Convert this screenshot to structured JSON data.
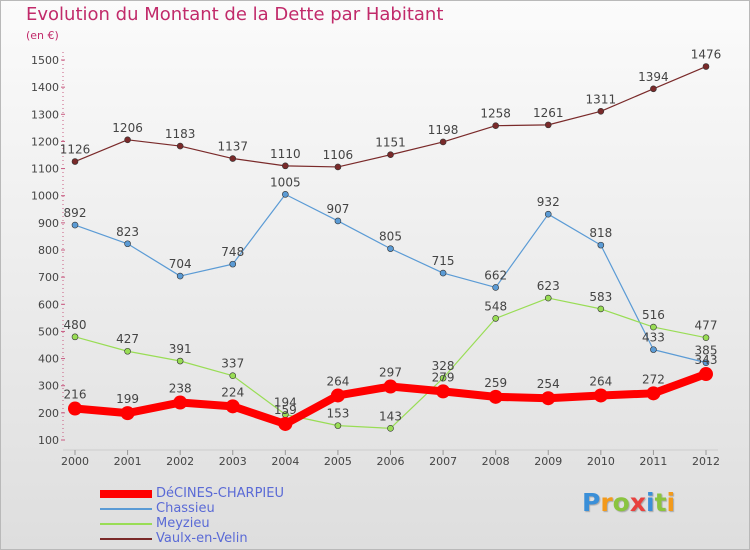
{
  "chart_data": {
    "type": "line",
    "title": "Evolution du Montant de la Dette par Habitant",
    "subtitle": "(en €)",
    "categories": [
      "2000",
      "2001",
      "2002",
      "2003",
      "2004",
      "2005",
      "2006",
      "2007",
      "2008",
      "2009",
      "2010",
      "2011",
      "2012"
    ],
    "ylim": [
      100,
      1500
    ],
    "yticks": [
      100,
      200,
      300,
      400,
      500,
      600,
      700,
      800,
      900,
      1000,
      1100,
      1200,
      1300,
      1400,
      1500
    ],
    "grid": false,
    "legend_position": "bottom-left",
    "series": [
      {
        "name": "DéCINES-CHARPIEU",
        "color": "#ff0000",
        "values": [
          216,
          199,
          238,
          224,
          159,
          264,
          297,
          279,
          259,
          254,
          264,
          272,
          343
        ]
      },
      {
        "name": "Chassieu",
        "color": "#5b9bd5",
        "values": [
          892,
          823,
          704,
          748,
          1005,
          907,
          805,
          715,
          662,
          932,
          818,
          433,
          385
        ]
      },
      {
        "name": "Meyzieu",
        "color": "#99dd55",
        "values": [
          480,
          427,
          391,
          337,
          194,
          153,
          143,
          328,
          548,
          623,
          583,
          516,
          477
        ]
      },
      {
        "name": "Vaulx-en-Velin",
        "color": "#7a2a2a",
        "values": [
          1126,
          1206,
          1183,
          1137,
          1110,
          1106,
          1151,
          1198,
          1258,
          1261,
          1311,
          1394,
          1476
        ]
      }
    ]
  },
  "logo": {
    "letters": [
      "P",
      "r",
      "o",
      "x",
      "i",
      "t",
      "i"
    ],
    "colors": [
      "#3a8fd8",
      "#f39a1b",
      "#8ac43f",
      "#e8423f",
      "#3a8fd8",
      "#8ac43f",
      "#f39a1b"
    ]
  }
}
